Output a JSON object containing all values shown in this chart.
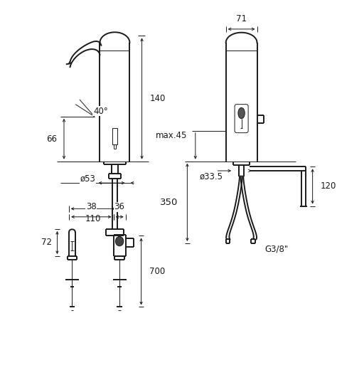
{
  "bg_color": "#ffffff",
  "line_color": "#1a1a1a",
  "lw": 1.4,
  "lw_thin": 0.7,
  "fs": 8.5,
  "annotations": {
    "dim_140": "140",
    "dim_66": "66",
    "dim_40": "40°",
    "dim_53": "ø53",
    "dim_110": "110",
    "dim_71": "71",
    "dim_max45": "max.45",
    "dim_33_5": "ø33.5",
    "dim_350": "350",
    "dim_120": "120",
    "dim_G38": "G3/8\"",
    "dim_38": "38",
    "dim_36": "36",
    "dim_72": "72",
    "dim_700": "700"
  }
}
